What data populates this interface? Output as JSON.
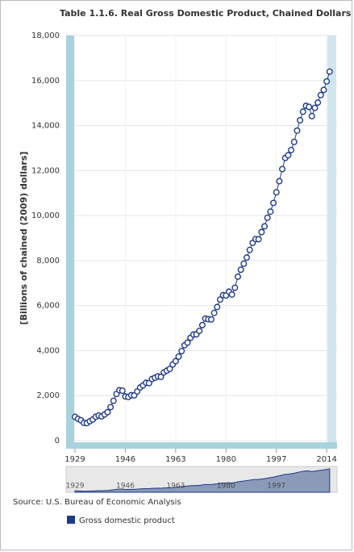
{
  "chart_data": {
    "type": "line",
    "title": "Table 1.1.6. Real Gross Domestic Product, Chained Dollars",
    "y_label": "[Billions of chained (2009) dollars]",
    "source": "Source: U.S. Bureau of Economic Analysis",
    "x": [
      1929,
      1930,
      1931,
      1932,
      1933,
      1934,
      1935,
      1936,
      1937,
      1938,
      1939,
      1940,
      1941,
      1942,
      1943,
      1944,
      1945,
      1946,
      1947,
      1948,
      1949,
      1950,
      1951,
      1952,
      1953,
      1954,
      1955,
      1956,
      1957,
      1958,
      1959,
      1960,
      1961,
      1962,
      1963,
      1964,
      1965,
      1966,
      1967,
      1968,
      1969,
      1970,
      1971,
      1972,
      1973,
      1974,
      1975,
      1976,
      1977,
      1978,
      1979,
      1980,
      1981,
      1982,
      1983,
      1984,
      1985,
      1986,
      1987,
      1988,
      1989,
      1990,
      1991,
      1992,
      1993,
      1994,
      1995,
      1996,
      1997,
      1998,
      1999,
      2000,
      2001,
      2002,
      2003,
      2004,
      2005,
      2006,
      2007,
      2008,
      2009,
      2010,
      2011,
      2012,
      2013,
      2014,
      2015
    ],
    "series": [
      {
        "name": "Gross domestic product",
        "color": "#1f3a8a",
        "values": [
          1057,
          967,
          905,
          788,
          778,
          862,
          939,
          1061,
          1115,
          1078,
          1164,
          1266,
          1490,
          1772,
          2074,
          2239,
          2218,
          1961,
          1939,
          2020,
          2009,
          2184,
          2360,
          2456,
          2571,
          2557,
          2739,
          2797,
          2856,
          2835,
          3031,
          3109,
          3188,
          3383,
          3530,
          3734,
          3977,
          4239,
          4355,
          4569,
          4713,
          4722,
          4878,
          5134,
          5424,
          5396,
          5385,
          5675,
          5937,
          6267,
          6466,
          6450,
          6618,
          6491,
          6792,
          7285,
          7594,
          7861,
          8133,
          8475,
          8786,
          8955,
          8948,
          9267,
          9521,
          9905,
          10175,
          10561,
          11035,
          11526,
          12066,
          12560,
          12682,
          12909,
          13271,
          13774,
          14234,
          14614,
          14874,
          14830,
          14419,
          14784,
          15021,
          15355,
          15583,
          15962,
          16397
        ]
      }
    ],
    "xlim": [
      1926,
      2017.5
    ],
    "xticks": [
      1929,
      1946,
      1963,
      1980,
      1997,
      2014
    ],
    "ylim": [
      0,
      18000
    ],
    "yticks": [
      0,
      {
        "value": 2000,
        "label": "2,000"
      },
      {
        "value": 4000,
        "label": "4,000"
      },
      {
        "value": 6000,
        "label": "6,000"
      },
      {
        "value": 8000,
        "label": "8,000"
      },
      {
        "value": 10000,
        "label": "10,000"
      },
      {
        "value": 12000,
        "label": "12,000"
      },
      {
        "value": 14000,
        "label": "14,000"
      },
      {
        "value": 16000,
        "label": "16,000"
      },
      {
        "value": 18000,
        "label": "18,000"
      }
    ],
    "grid": true
  }
}
